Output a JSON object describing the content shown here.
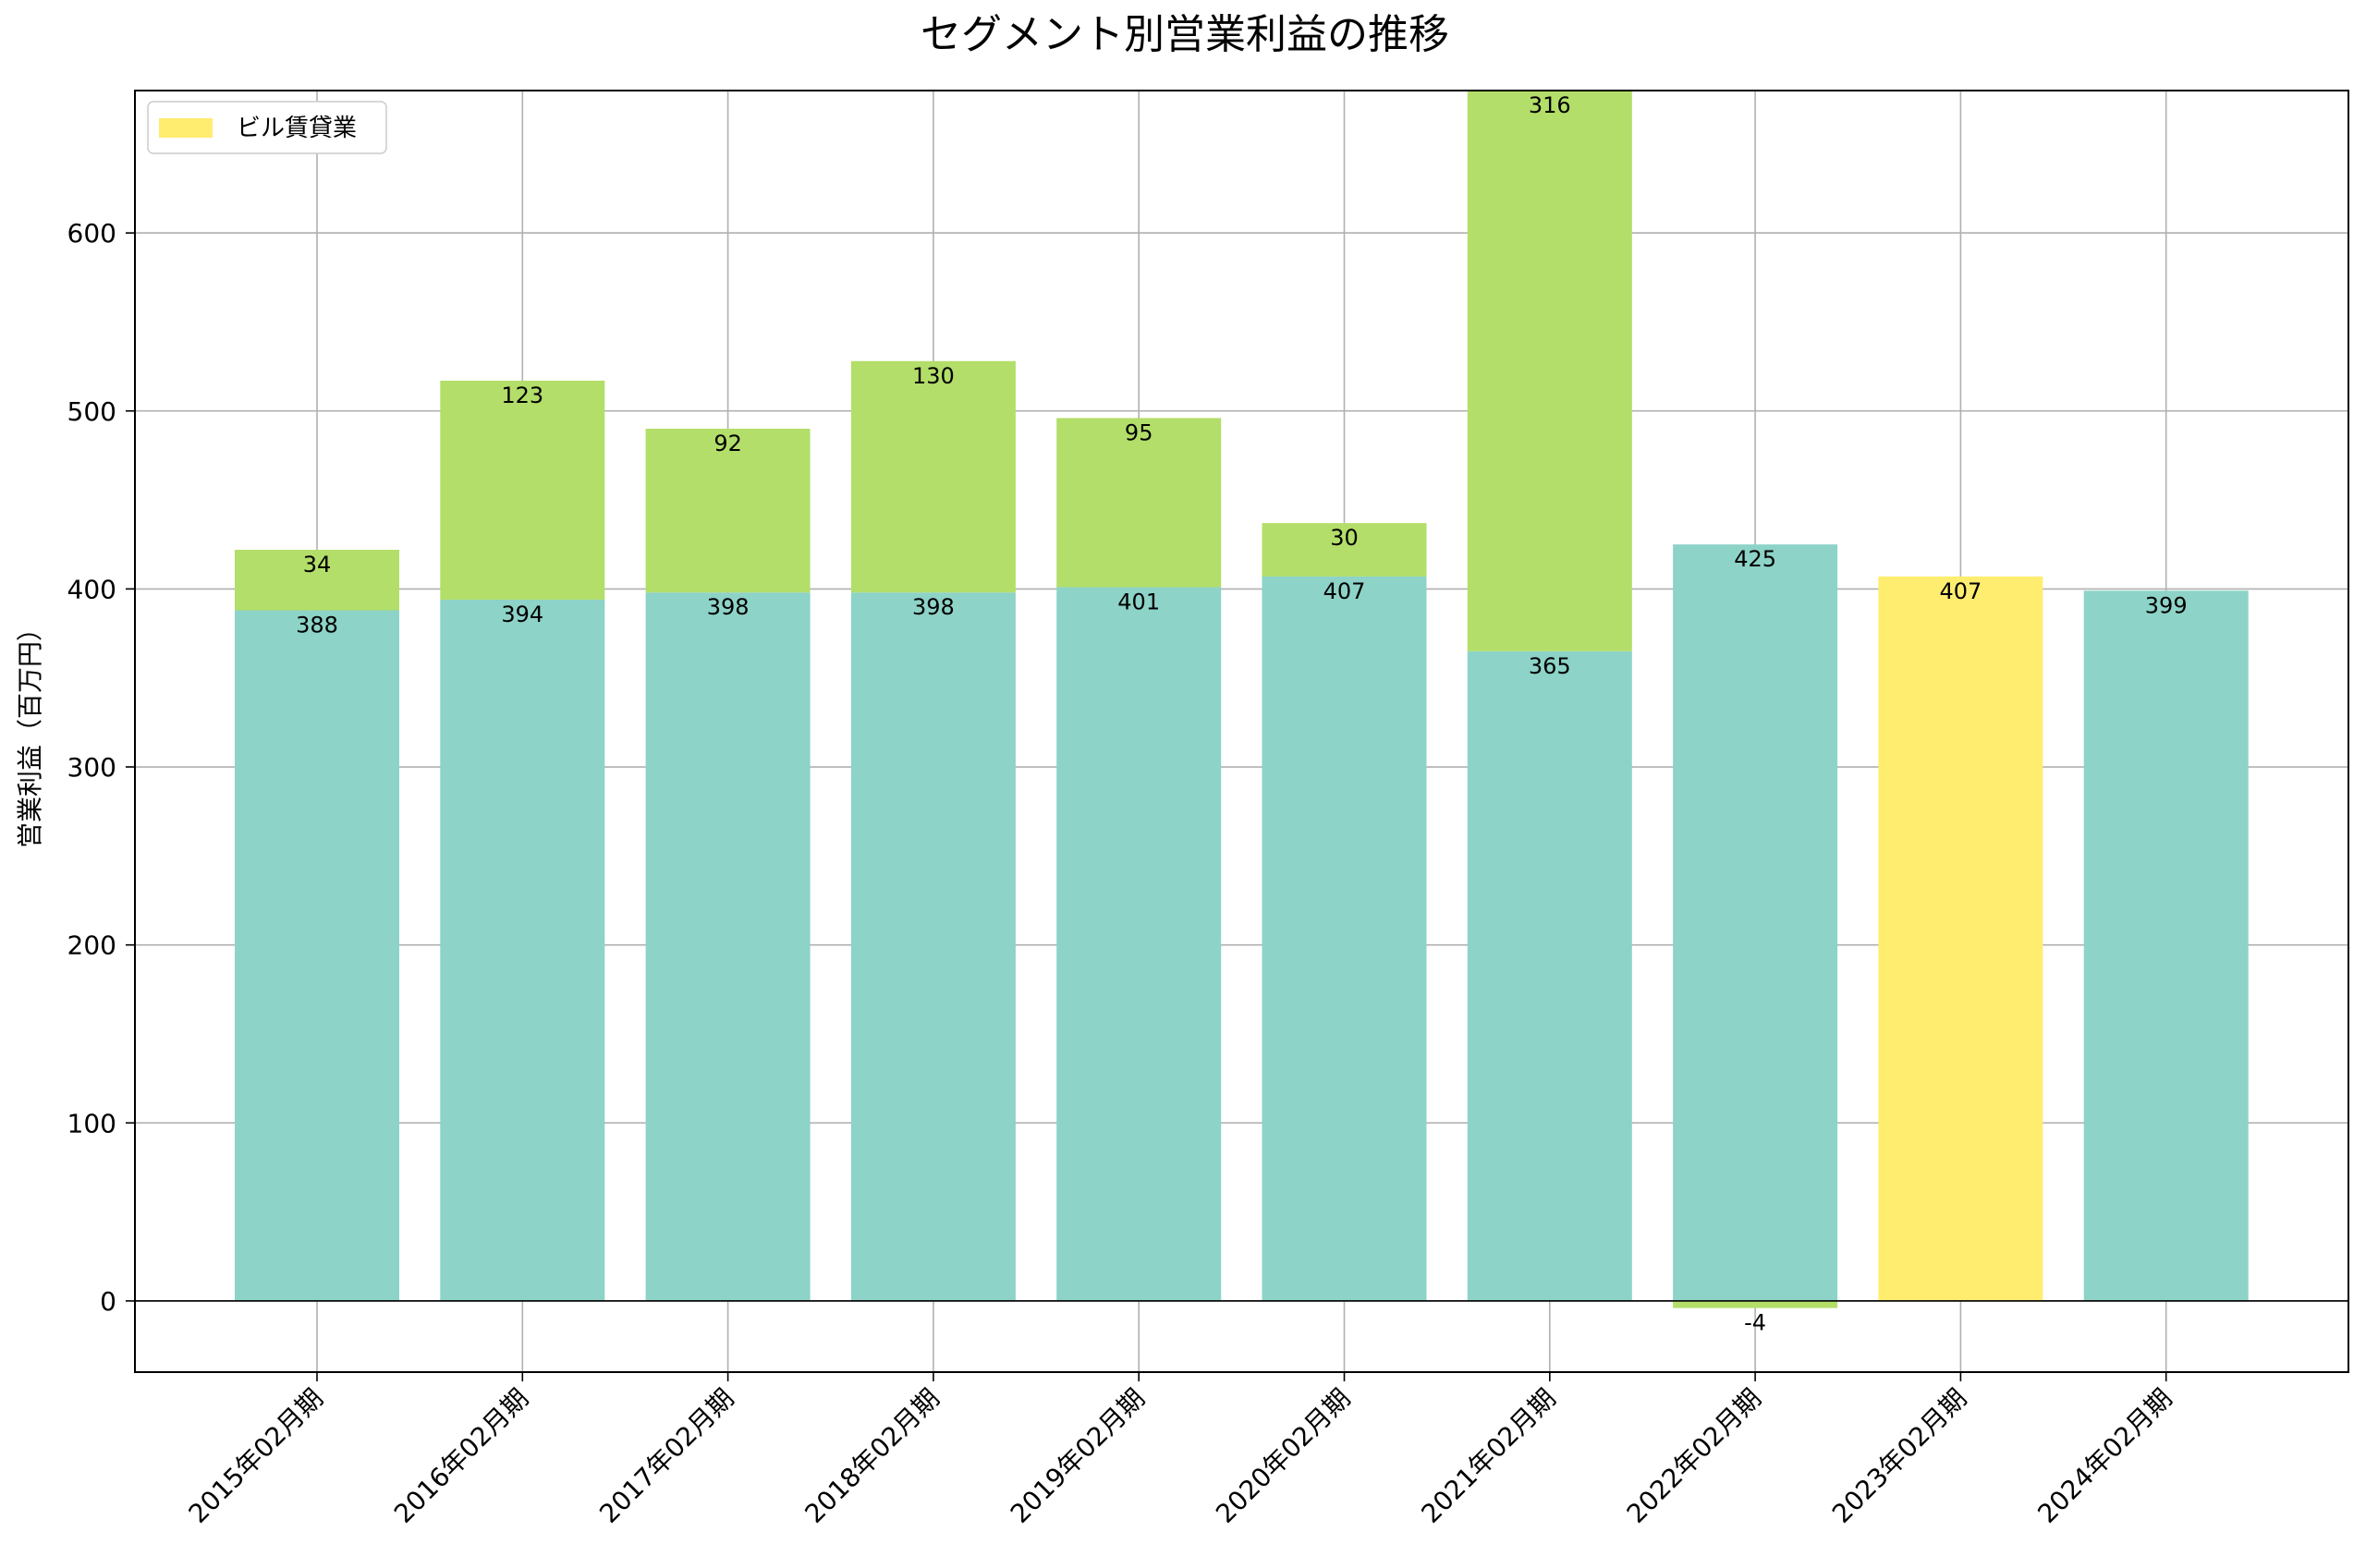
{
  "chart_data": {
    "type": "bar",
    "stacked": true,
    "title": "セグメント別営業利益の推移",
    "xlabel": "",
    "ylabel": "営業利益（百万円）",
    "ylim": [
      -40,
      680
    ],
    "yticks": [
      0,
      100,
      200,
      300,
      400,
      500,
      600
    ],
    "grid": true,
    "legend": {
      "position": "top-left",
      "entries": [
        "ビル賃貸業"
      ]
    },
    "categories": [
      "2015年02月期",
      "2016年02月期",
      "2017年02月期",
      "2018年02月期",
      "2019年02月期",
      "2020年02月期",
      "2021年02月期",
      "2022年02月期",
      "2023年02月期",
      "2024年02月期"
    ],
    "series": [
      {
        "name": "segment-teal",
        "color": "#8dd3c7",
        "values": [
          388,
          394,
          398,
          398,
          401,
          407,
          365,
          425,
          null,
          399
        ],
        "labels": [
          "388",
          "394",
          "398",
          "398",
          "401",
          "407",
          "365",
          "425",
          "",
          "399"
        ]
      },
      {
        "name": "segment-green",
        "color": "#b3de69",
        "values": [
          34,
          123,
          92,
          130,
          95,
          30,
          316,
          -4,
          null,
          null
        ],
        "labels": [
          "34",
          "123",
          "92",
          "130",
          "95",
          "30",
          "316",
          "-4",
          "",
          ""
        ]
      },
      {
        "name": "ビル賃貸業",
        "color": "#ffed6f",
        "values": [
          null,
          null,
          null,
          null,
          null,
          null,
          null,
          null,
          407,
          null
        ],
        "labels": [
          "",
          "",
          "",
          "",
          "",
          "",
          "",
          "",
          "407",
          ""
        ]
      }
    ]
  }
}
